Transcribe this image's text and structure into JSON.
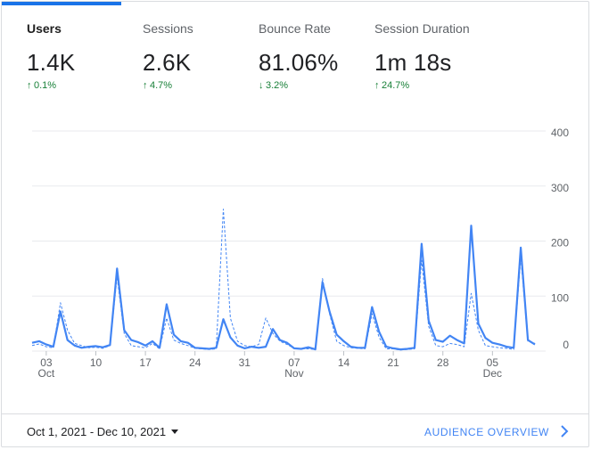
{
  "metrics": [
    {
      "label": "Users",
      "value": "1.4K",
      "change": "0.1%",
      "direction": "up",
      "active": true
    },
    {
      "label": "Sessions",
      "value": "2.6K",
      "change": "4.7%",
      "direction": "up",
      "active": false
    },
    {
      "label": "Bounce Rate",
      "value": "81.06%",
      "change": "3.2%",
      "direction": "down",
      "active": false
    },
    {
      "label": "Session Duration",
      "value": "1m 18s",
      "change": "24.7%",
      "direction": "up",
      "active": false
    }
  ],
  "colors": {
    "accent": "#1a73e8",
    "line": "#4285f4",
    "positive": "#188038",
    "grid": "#e8eaed"
  },
  "icons": {
    "up": "arrow-up-icon",
    "down": "arrow-down-icon",
    "chevron": "chevron-right-icon",
    "dropdown": "caret-down-icon"
  },
  "chart_data": {
    "type": "line",
    "x_start": "2021-10-01",
    "y_ticks": [
      "400",
      "300",
      "200",
      "100",
      "0"
    ],
    "ylim": [
      0,
      400
    ],
    "grid": true,
    "x_ticks": [
      {
        "day": "03",
        "month": "Oct",
        "index": 2
      },
      {
        "day": "10",
        "month": "",
        "index": 9
      },
      {
        "day": "17",
        "month": "",
        "index": 16
      },
      {
        "day": "24",
        "month": "",
        "index": 23
      },
      {
        "day": "31",
        "month": "",
        "index": 30
      },
      {
        "day": "07",
        "month": "Nov",
        "index": 37
      },
      {
        "day": "14",
        "month": "",
        "index": 44
      },
      {
        "day": "21",
        "month": "",
        "index": 51
      },
      {
        "day": "28",
        "month": "",
        "index": 58
      },
      {
        "day": "05",
        "month": "Dec",
        "index": 65
      }
    ],
    "series": [
      {
        "style": "solid",
        "values": [
          15,
          18,
          12,
          8,
          72,
          20,
          10,
          6,
          8,
          9,
          7,
          11,
          150,
          38,
          20,
          16,
          10,
          18,
          6,
          85,
          30,
          18,
          15,
          6,
          5,
          4,
          6,
          58,
          25,
          10,
          5,
          8,
          6,
          8,
          40,
          20,
          15,
          5,
          4,
          7,
          3,
          125,
          72,
          30,
          18,
          8,
          6,
          6,
          80,
          35,
          8,
          5,
          3,
          4,
          6,
          195,
          55,
          20,
          17,
          28,
          20,
          14,
          228,
          50,
          24,
          15,
          12,
          8,
          6,
          188,
          20,
          12
        ]
      },
      {
        "style": "dashed",
        "values": [
          10,
          13,
          8,
          6,
          88,
          38,
          14,
          10,
          6,
          7,
          5,
          10,
          135,
          32,
          10,
          8,
          6,
          14,
          4,
          60,
          20,
          14,
          10,
          5,
          4,
          3,
          4,
          258,
          60,
          18,
          10,
          8,
          12,
          60,
          32,
          18,
          12,
          5,
          4,
          4,
          3,
          132,
          68,
          18,
          10,
          6,
          5,
          4,
          68,
          25,
          4,
          4,
          2,
          3,
          4,
          165,
          45,
          10,
          8,
          14,
          12,
          8,
          105,
          38,
          10,
          8,
          6,
          5,
          3,
          170,
          18,
          14
        ]
      }
    ]
  },
  "footer": {
    "date_range": "Oct 1, 2021 - Dec 10, 2021",
    "link": "AUDIENCE OVERVIEW"
  }
}
